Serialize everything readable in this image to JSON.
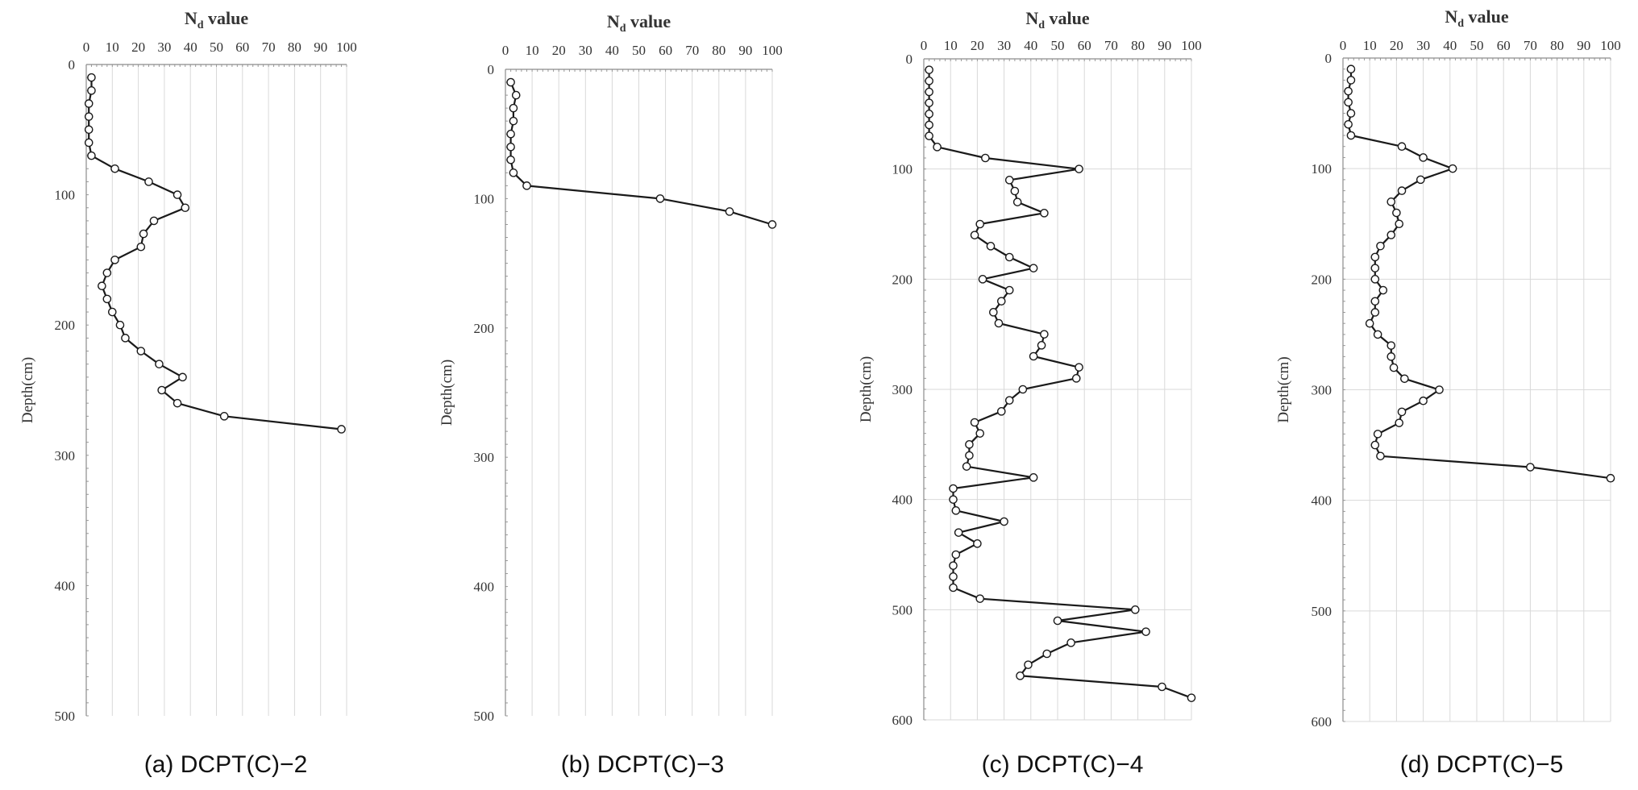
{
  "chart_data": [
    {
      "type": "line",
      "caption": "(a) DCPT(C)−2",
      "xlabel_main": "N",
      "xlabel_sub": "d",
      "xlabel_tail": " value",
      "ylabel": "Depth(cm)",
      "xlim": [
        0,
        100
      ],
      "ylim": [
        0,
        500
      ],
      "x_ticks": [
        0,
        10,
        20,
        30,
        40,
        50,
        60,
        70,
        80,
        90,
        100
      ],
      "y_ticks": [
        0,
        100,
        200,
        300,
        400,
        500
      ],
      "grid": "vertical",
      "points": [
        [
          2,
          10
        ],
        [
          2,
          20
        ],
        [
          1,
          30
        ],
        [
          1,
          40
        ],
        [
          1,
          50
        ],
        [
          1,
          60
        ],
        [
          2,
          70
        ],
        [
          11,
          80
        ],
        [
          24,
          90
        ],
        [
          35,
          100
        ],
        [
          38,
          110
        ],
        [
          26,
          120
        ],
        [
          22,
          130
        ],
        [
          21,
          140
        ],
        [
          11,
          150
        ],
        [
          8,
          160
        ],
        [
          6,
          170
        ],
        [
          8,
          180
        ],
        [
          10,
          190
        ],
        [
          13,
          200
        ],
        [
          15,
          210
        ],
        [
          21,
          220
        ],
        [
          28,
          230
        ],
        [
          37,
          240
        ],
        [
          29,
          250
        ],
        [
          35,
          260
        ],
        [
          53,
          270
        ],
        [
          98,
          280
        ]
      ]
    },
    {
      "type": "line",
      "caption": "(b) DCPT(C)−3",
      "xlabel_main": "N",
      "xlabel_sub": "d",
      "xlabel_tail": " value",
      "ylabel": "Depth(cm)",
      "xlim": [
        0,
        100
      ],
      "ylim": [
        0,
        500
      ],
      "x_ticks": [
        0,
        10,
        20,
        30,
        40,
        50,
        60,
        70,
        80,
        90,
        100
      ],
      "y_ticks": [
        0,
        100,
        200,
        300,
        400,
        500
      ],
      "grid": "vertical",
      "points": [
        [
          2,
          10
        ],
        [
          4,
          20
        ],
        [
          3,
          30
        ],
        [
          3,
          40
        ],
        [
          2,
          50
        ],
        [
          2,
          60
        ],
        [
          2,
          70
        ],
        [
          3,
          80
        ],
        [
          8,
          90
        ],
        [
          58,
          100
        ],
        [
          84,
          110
        ],
        [
          100,
          120
        ]
      ]
    },
    {
      "type": "line",
      "caption": "(c) DCPT(C)−4",
      "xlabel_main": "N",
      "xlabel_sub": "d",
      "xlabel_tail": " value",
      "ylabel": "Depth(cm)",
      "xlim": [
        0,
        100
      ],
      "ylim": [
        0,
        600
      ],
      "x_ticks": [
        0,
        10,
        20,
        30,
        40,
        50,
        60,
        70,
        80,
        90,
        100
      ],
      "y_ticks": [
        0,
        100,
        200,
        300,
        400,
        500,
        600
      ],
      "grid": "both",
      "points": [
        [
          2,
          10
        ],
        [
          2,
          20
        ],
        [
          2,
          30
        ],
        [
          2,
          40
        ],
        [
          2,
          50
        ],
        [
          2,
          60
        ],
        [
          2,
          70
        ],
        [
          5,
          80
        ],
        [
          23,
          90
        ],
        [
          58,
          100
        ],
        [
          32,
          110
        ],
        [
          34,
          120
        ],
        [
          35,
          130
        ],
        [
          45,
          140
        ],
        [
          21,
          150
        ],
        [
          19,
          160
        ],
        [
          25,
          170
        ],
        [
          32,
          180
        ],
        [
          41,
          190
        ],
        [
          22,
          200
        ],
        [
          32,
          210
        ],
        [
          29,
          220
        ],
        [
          26,
          230
        ],
        [
          28,
          240
        ],
        [
          45,
          250
        ],
        [
          44,
          260
        ],
        [
          41,
          270
        ],
        [
          58,
          280
        ],
        [
          57,
          290
        ],
        [
          37,
          300
        ],
        [
          32,
          310
        ],
        [
          29,
          320
        ],
        [
          19,
          330
        ],
        [
          21,
          340
        ],
        [
          17,
          350
        ],
        [
          17,
          360
        ],
        [
          16,
          370
        ],
        [
          41,
          380
        ],
        [
          11,
          390
        ],
        [
          11,
          400
        ],
        [
          12,
          410
        ],
        [
          30,
          420
        ],
        [
          13,
          430
        ],
        [
          20,
          440
        ],
        [
          12,
          450
        ],
        [
          11,
          460
        ],
        [
          11,
          470
        ],
        [
          11,
          480
        ],
        [
          21,
          490
        ],
        [
          79,
          500
        ],
        [
          50,
          510
        ],
        [
          83,
          520
        ],
        [
          55,
          530
        ],
        [
          46,
          540
        ],
        [
          39,
          550
        ],
        [
          36,
          560
        ],
        [
          89,
          570
        ],
        [
          100,
          580
        ]
      ]
    },
    {
      "type": "line",
      "caption": "(d) DCPT(C)−5",
      "xlabel_main": "N",
      "xlabel_sub": "d",
      "xlabel_tail": " value",
      "ylabel": "Depth(cm)",
      "xlim": [
        0,
        100
      ],
      "ylim": [
        0,
        600
      ],
      "x_ticks": [
        0,
        10,
        20,
        30,
        40,
        50,
        60,
        70,
        80,
        90,
        100
      ],
      "y_ticks": [
        0,
        100,
        200,
        300,
        400,
        500,
        600
      ],
      "grid": "both",
      "points": [
        [
          3,
          10
        ],
        [
          3,
          20
        ],
        [
          2,
          30
        ],
        [
          2,
          40
        ],
        [
          3,
          50
        ],
        [
          2,
          60
        ],
        [
          3,
          70
        ],
        [
          22,
          80
        ],
        [
          30,
          90
        ],
        [
          41,
          100
        ],
        [
          29,
          110
        ],
        [
          22,
          120
        ],
        [
          18,
          130
        ],
        [
          20,
          140
        ],
        [
          21,
          150
        ],
        [
          18,
          160
        ],
        [
          14,
          170
        ],
        [
          12,
          180
        ],
        [
          12,
          190
        ],
        [
          12,
          200
        ],
        [
          15,
          210
        ],
        [
          12,
          220
        ],
        [
          12,
          230
        ],
        [
          10,
          240
        ],
        [
          13,
          250
        ],
        [
          18,
          260
        ],
        [
          18,
          270
        ],
        [
          19,
          280
        ],
        [
          23,
          290
        ],
        [
          36,
          300
        ],
        [
          30,
          310
        ],
        [
          22,
          320
        ],
        [
          21,
          330
        ],
        [
          13,
          340
        ],
        [
          12,
          350
        ],
        [
          14,
          360
        ],
        [
          70,
          370
        ],
        [
          100,
          380
        ]
      ]
    }
  ]
}
